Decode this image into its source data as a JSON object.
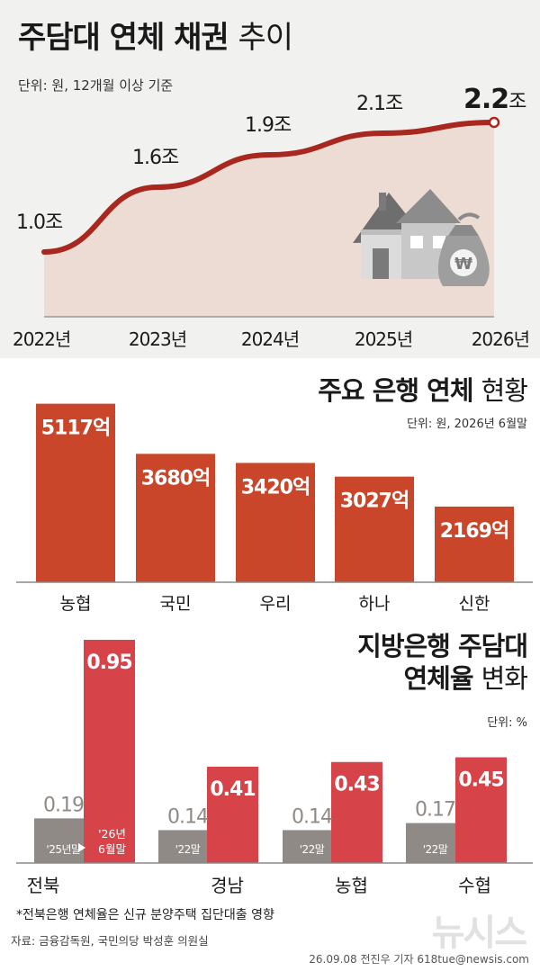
{
  "title": {
    "bold": "주담대 연체 채권",
    "light": "추이"
  },
  "line_unit": "단위: 원, 12개월 이상 기준",
  "bar_title": {
    "bold": "주요 은행 연체",
    "light": "현황"
  },
  "bar_unit": "단위: 원, 2026년 6월말",
  "rate_title": {
    "line1": "지방은행 주담대",
    "line2_bold": "연체율",
    "line2_light": "변화"
  },
  "rate_unit": "단위: %",
  "footnote": "*전북은행 연체율은 신규 분양주택 집단대출 영향",
  "source": "자료: 금융감독원, 국민의당 박성훈 의원실",
  "credit": "26.09.08 전진우 기자 618tue@newsis.com",
  "logo": "뉴시스",
  "colors": {
    "line": "#a8281f",
    "area": "#ecdcd4",
    "bar": "#c9462b",
    "new_bar": "#d6444a",
    "old_bar": "#8f8a85",
    "top_bg": "#f1f1f0"
  },
  "chart_data": [
    {
      "type": "line",
      "title": "주담대 연체 채권 추이",
      "x": [
        "2022년",
        "2023년",
        "2024년",
        "2025년",
        "2026년"
      ],
      "series": [
        {
          "values": [
            1.0,
            1.6,
            1.9,
            2.1,
            2.2
          ]
        }
      ],
      "value_labels": [
        "1.0조",
        "1.6조",
        "1.9조",
        "2.1조",
        "2.2조"
      ],
      "unit": "조 원",
      "ylim": [
        0.4,
        2.4
      ]
    },
    {
      "type": "bar",
      "title": "주요 은행 연체 현황",
      "categories": [
        "농협",
        "국민",
        "우리",
        "하나",
        "신한"
      ],
      "values": [
        5117,
        3680,
        3420,
        3027,
        2169
      ],
      "value_labels": [
        "5117억",
        "3680억",
        "3420억",
        "3027억",
        "2169억"
      ],
      "unit": "억 원",
      "ylim": [
        0,
        5400
      ]
    },
    {
      "type": "bar",
      "title": "지방은행 주담대 연체율 변화",
      "categories": [
        "전북",
        "경남",
        "농협",
        "수협"
      ],
      "series": [
        {
          "name": "'25년말",
          "values": [
            0.19,
            0.14,
            0.14,
            0.17
          ],
          "period_labels": [
            "'25년말",
            "'22말",
            "'22말",
            "'22말"
          ]
        },
        {
          "name": "'26년 6월말",
          "values": [
            0.95,
            0.41,
            0.43,
            0.45
          ],
          "period_labels": [
            "'26년 6월말",
            "",
            "",
            ""
          ]
        }
      ],
      "value_labels": {
        "old": [
          "0.19",
          "0.14",
          "0.14",
          "0.17"
        ],
        "new": [
          "0.95",
          "0.41",
          "0.43",
          "0.45"
        ]
      },
      "unit": "%",
      "ylim": [
        0,
        1.0
      ]
    }
  ]
}
